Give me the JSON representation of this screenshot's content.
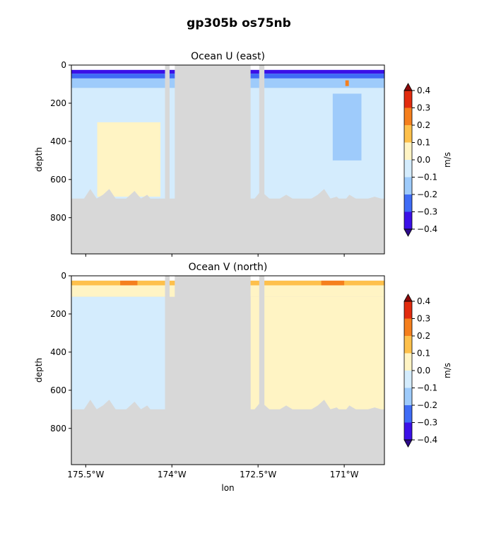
{
  "suptitle": "gp305b os75nb",
  "chart_data": [
    {
      "type": "heatmap",
      "title": "Ocean U (east)",
      "ylabel": "depth",
      "xlabel": "",
      "y_reversed": true,
      "ylim": [
        990,
        0
      ],
      "xlim": [
        -175.75,
        -170.3
      ],
      "yticks": [
        0,
        200,
        400,
        600,
        800
      ],
      "ytick_labels": [
        "0",
        "200",
        "400",
        "600",
        "800"
      ],
      "xticks": [
        -175.5,
        -174.0,
        -172.5,
        -171.0
      ],
      "xtick_labels": [],
      "colorbar": {
        "label": "m/s",
        "levels": [
          -0.4,
          -0.3,
          -0.2,
          -0.1,
          0.0,
          0.1,
          0.2,
          0.3,
          0.4
        ],
        "tick_labels": [
          "−0.4",
          "−0.3",
          "−0.2",
          "−0.1",
          "0.0",
          "0.1",
          "0.2",
          "0.3",
          "0.4"
        ],
        "colors": [
          "#3b10e8",
          "#3f6cf6",
          "#9ecbfb",
          "#d4ecfd",
          "#fff4c4",
          "#fec04b",
          "#f57f1d",
          "#e22b0e"
        ],
        "under_color": "#2c0a8a",
        "over_color": "#8c0a0a",
        "extend": "both"
      },
      "bathymetry_depth": [
        720,
        740,
        700,
        650,
        700,
        680,
        650,
        700,
        720,
        690,
        660,
        700,
        680,
        720,
        700,
        750,
        720,
        690,
        660,
        700,
        680,
        700,
        720,
        690,
        650,
        710,
        700,
        680,
        720,
        700,
        660,
        690,
        720,
        700,
        680,
        700,
        750,
        720,
        700,
        680,
        650,
        700,
        690,
        720,
        680,
        700,
        720,
        700,
        690,
        700
      ],
      "bathy_x": [
        -175.75,
        -175.64,
        -175.53,
        -175.42,
        -175.31,
        -175.2,
        -175.09,
        -174.98,
        -174.87,
        -174.76,
        -174.65,
        -174.54,
        -174.43,
        -174.32,
        -174.21,
        -174.1,
        -173.99,
        -173.88,
        -173.77,
        -173.66,
        -173.55,
        -173.44,
        -173.33,
        -173.22,
        -173.11,
        -173.0,
        -172.89,
        -172.78,
        -172.67,
        -172.56,
        -172.45,
        -172.34,
        -172.23,
        -172.12,
        -172.01,
        -171.9,
        -171.79,
        -171.68,
        -171.57,
        -171.46,
        -171.35,
        -171.24,
        -171.13,
        -171.02,
        -170.91,
        -170.8,
        -170.69,
        -170.58,
        -170.47,
        -170.36
      ],
      "gaps": [
        [
          -174.12,
          -174.04
        ],
        [
          -173.95,
          -172.63
        ],
        [
          -172.48,
          -172.39
        ]
      ],
      "mask_above_depth": 25,
      "regions": [
        {
          "value": -0.35,
          "x": [
            -175.75,
            -170.3
          ],
          "depth": [
            25,
            45
          ]
        },
        {
          "value": -0.25,
          "x": [
            -175.75,
            -170.3
          ],
          "depth": [
            45,
            70
          ]
        },
        {
          "value": -0.15,
          "x": [
            -175.75,
            -170.3
          ],
          "depth": [
            70,
            120
          ]
        },
        {
          "value": -0.05,
          "x": [
            -175.75,
            -170.3
          ],
          "depth": [
            120,
            700
          ]
        },
        {
          "value": 0.05,
          "x": [
            -175.3,
            -174.2
          ],
          "depth": [
            300,
            690
          ]
        },
        {
          "value": -0.15,
          "x": [
            -171.2,
            -170.7
          ],
          "depth": [
            150,
            500
          ]
        },
        {
          "value": 0.25,
          "x": [
            -170.98,
            -170.92
          ],
          "depth": [
            80,
            110
          ]
        }
      ]
    },
    {
      "type": "heatmap",
      "title": "Ocean V (north)",
      "ylabel": "depth",
      "xlabel": "lon",
      "y_reversed": true,
      "ylim": [
        990,
        0
      ],
      "xlim": [
        -175.75,
        -170.3
      ],
      "yticks": [
        0,
        200,
        400,
        600,
        800
      ],
      "ytick_labels": [
        "0",
        "200",
        "400",
        "600",
        "800"
      ],
      "xticks": [
        -175.5,
        -174.0,
        -172.5,
        -171.0
      ],
      "xtick_labels": [
        "175.5°W",
        "174°W",
        "172.5°W",
        "171°W"
      ],
      "colorbar": {
        "label": "m/s",
        "levels": [
          -0.4,
          -0.3,
          -0.2,
          -0.1,
          0.0,
          0.1,
          0.2,
          0.3,
          0.4
        ],
        "tick_labels": [
          "−0.4",
          "−0.3",
          "−0.2",
          "−0.1",
          "0.0",
          "0.1",
          "0.2",
          "0.3",
          "0.4"
        ],
        "colors": [
          "#3b10e8",
          "#3f6cf6",
          "#9ecbfb",
          "#d4ecfd",
          "#fff4c4",
          "#fec04b",
          "#f57f1d",
          "#e22b0e"
        ],
        "under_color": "#2c0a8a",
        "over_color": "#8c0a0a",
        "extend": "both"
      },
      "bathymetry_depth": [
        720,
        740,
        700,
        650,
        700,
        680,
        650,
        700,
        720,
        690,
        660,
        700,
        680,
        720,
        700,
        750,
        720,
        690,
        660,
        700,
        680,
        700,
        720,
        690,
        650,
        710,
        700,
        680,
        720,
        700,
        660,
        690,
        720,
        700,
        680,
        700,
        750,
        720,
        700,
        680,
        650,
        700,
        690,
        720,
        680,
        700,
        720,
        700,
        690,
        700
      ],
      "bathy_x": [
        -175.75,
        -175.64,
        -175.53,
        -175.42,
        -175.31,
        -175.2,
        -175.09,
        -174.98,
        -174.87,
        -174.76,
        -174.65,
        -174.54,
        -174.43,
        -174.32,
        -174.21,
        -174.1,
        -173.99,
        -173.88,
        -173.77,
        -173.66,
        -173.55,
        -173.44,
        -173.33,
        -173.22,
        -173.11,
        -173.0,
        -172.89,
        -172.78,
        -172.67,
        -172.56,
        -172.45,
        -172.34,
        -172.23,
        -172.12,
        -172.01,
        -171.9,
        -171.79,
        -171.68,
        -171.57,
        -171.46,
        -171.35,
        -171.24,
        -171.13,
        -171.02,
        -170.91,
        -170.8,
        -170.69,
        -170.58,
        -170.47,
        -170.36
      ],
      "gaps": [
        [
          -174.12,
          -174.04
        ],
        [
          -173.95,
          -172.63
        ],
        [
          -172.48,
          -172.39
        ]
      ],
      "mask_above_depth": 25,
      "regions": [
        {
          "value": 0.15,
          "x": [
            -175.75,
            -170.3
          ],
          "depth": [
            25,
            50
          ]
        },
        {
          "value": 0.05,
          "x": [
            -175.75,
            -170.3
          ],
          "depth": [
            50,
            110
          ]
        },
        {
          "value": -0.05,
          "x": [
            -175.75,
            -174.1
          ],
          "depth": [
            110,
            700
          ]
        },
        {
          "value": 0.05,
          "x": [
            -172.63,
            -170.3
          ],
          "depth": [
            110,
            700
          ]
        },
        {
          "value": 0.25,
          "x": [
            -174.9,
            -174.6
          ],
          "depth": [
            25,
            50
          ]
        },
        {
          "value": 0.25,
          "x": [
            -171.4,
            -171.0
          ],
          "depth": [
            25,
            50
          ]
        }
      ]
    }
  ]
}
